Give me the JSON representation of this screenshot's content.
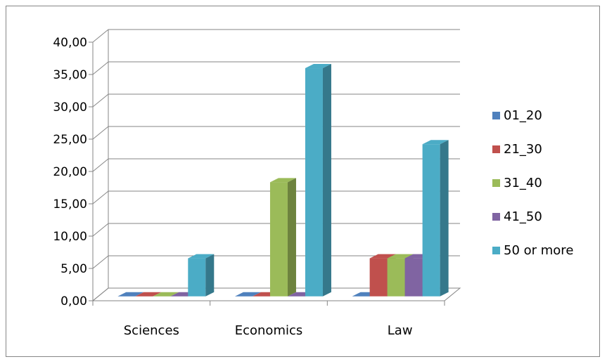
{
  "chart_data": {
    "type": "bar",
    "style": "3d-clustered-column",
    "categories": [
      "Sciences",
      "Economics",
      "Law"
    ],
    "series": [
      {
        "name": "01_20",
        "color": "#4F81BD",
        "values": [
          0,
          0,
          0
        ]
      },
      {
        "name": "21_30",
        "color": "#C0504D",
        "values": [
          0,
          0,
          5.88
        ]
      },
      {
        "name": "31_40",
        "color": "#9BBB59",
        "values": [
          0,
          17.65,
          5.88
        ]
      },
      {
        "name": "41_50",
        "color": "#8064A2",
        "values": [
          0,
          0,
          5.88
        ]
      },
      {
        "name": "50 or more",
        "color": "#4BACC6",
        "values": [
          5.88,
          35.29,
          23.53
        ]
      }
    ],
    "ylim": [
      0,
      40
    ],
    "y_ticks": [
      "0,00",
      "5,00",
      "10,00",
      "15,00",
      "20,00",
      "25,00",
      "30,00",
      "35,00",
      "40,00"
    ],
    "grid": true,
    "legend_position": "right",
    "title": "",
    "xlabel": "",
    "ylabel": ""
  }
}
